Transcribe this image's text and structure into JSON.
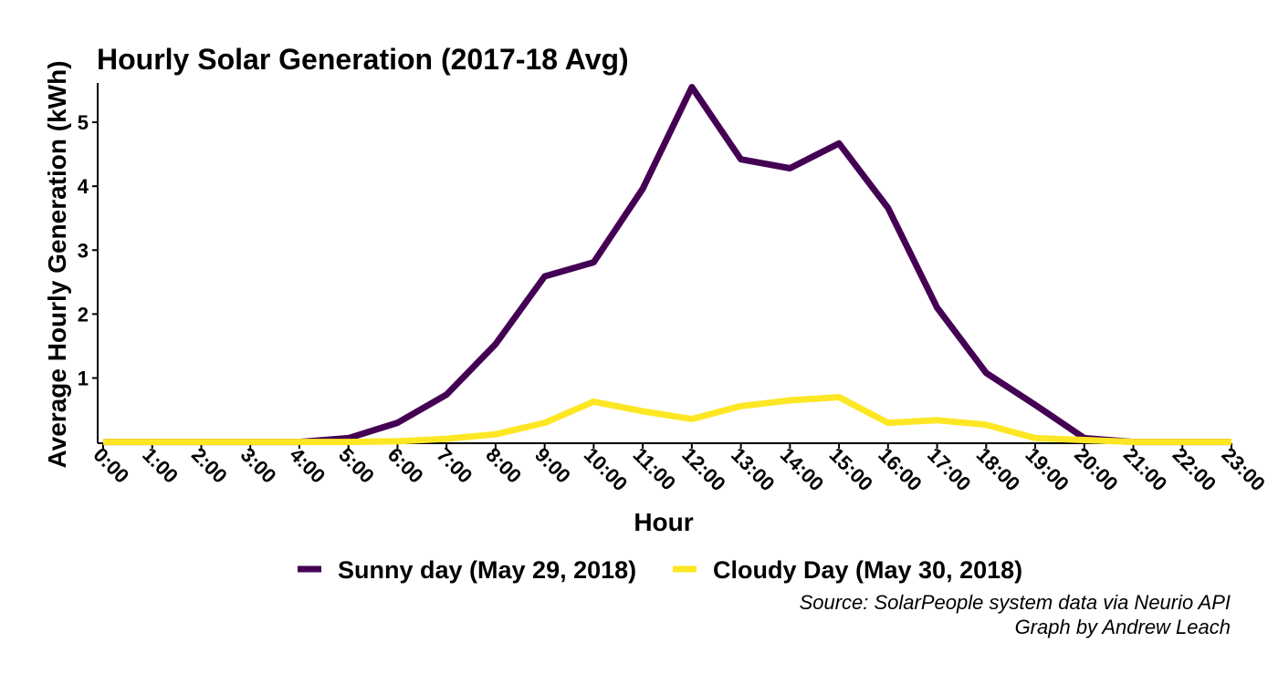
{
  "chart_data": {
    "type": "line",
    "title": "Hourly Solar Generation (2017-18 Avg)",
    "xlabel": "Hour",
    "ylabel": "Average Hourly Generation (kWh)",
    "categories": [
      "0:00",
      "1:00",
      "2:00",
      "3:00",
      "4:00",
      "5:00",
      "6:00",
      "7:00",
      "8:00",
      "9:00",
      "10:00",
      "11:00",
      "12:00",
      "13:00",
      "14:00",
      "15:00",
      "16:00",
      "17:00",
      "18:00",
      "19:00",
      "20:00",
      "21:00",
      "22:00",
      "23:00"
    ],
    "yticks": [
      1,
      2,
      3,
      4,
      5
    ],
    "ylim": [
      0,
      5.5
    ],
    "grid": false,
    "legend_position": "bottom",
    "series": [
      {
        "name": "Sunny day (May 29, 2018)",
        "color": "#440154",
        "values": [
          0,
          0,
          0,
          0,
          0,
          0.06,
          0.3,
          0.74,
          1.53,
          2.59,
          2.81,
          3.96,
          5.55,
          4.42,
          4.28,
          4.67,
          3.66,
          2.1,
          1.08,
          0.58,
          0.06,
          0,
          0,
          0
        ]
      },
      {
        "name": "Cloudy Day (May 30, 2018)",
        "color": "#FDE725",
        "values": [
          0,
          0,
          0,
          0,
          0,
          0,
          0.01,
          0.05,
          0.12,
          0.3,
          0.63,
          0.48,
          0.36,
          0.56,
          0.65,
          0.7,
          0.3,
          0.34,
          0.27,
          0.06,
          0.03,
          0,
          0,
          0
        ]
      }
    ]
  },
  "caption": {
    "line1": "Source: SolarPeople system data via Neurio API",
    "line2": "Graph by Andrew Leach"
  }
}
